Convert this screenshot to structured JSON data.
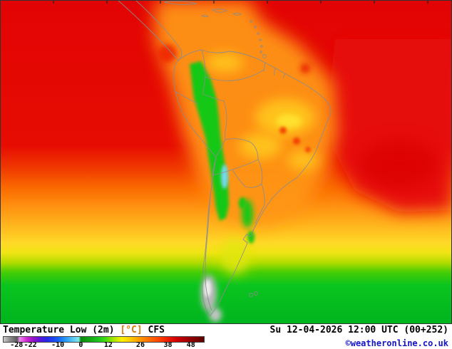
{
  "page": {
    "type": "weather-map",
    "region": "South America",
    "parameter": "Temperature Low (2m)"
  },
  "footer": {
    "title": "Temperature Low (2m)",
    "unit": "[°C]",
    "model": "CFS",
    "datetime": "Su 12-04-2026 12:00 UTC (00+252)",
    "copyright": "©weatheronline.co.uk"
  },
  "legend": {
    "min": -34,
    "max": 54,
    "ticks": [
      "-28",
      "-22",
      "-10",
      "0",
      "12",
      "26",
      "38",
      "48"
    ],
    "stops": [
      {
        "value": -34,
        "color": "#cccccc"
      },
      {
        "value": -31,
        "color": "#8a8a8a"
      },
      {
        "value": -28,
        "color": "#5a5a5a"
      },
      {
        "value": -27,
        "color": "#f08cf0"
      },
      {
        "value": -24,
        "color": "#d228d2"
      },
      {
        "value": -21,
        "color": "#9614c8"
      },
      {
        "value": -18,
        "color": "#5a14dc"
      },
      {
        "value": -15,
        "color": "#2828e6"
      },
      {
        "value": -12,
        "color": "#1e46f0"
      },
      {
        "value": -10,
        "color": "#1464f0"
      },
      {
        "value": -7,
        "color": "#2896f5"
      },
      {
        "value": -4,
        "color": "#50c3f0"
      },
      {
        "value": -1,
        "color": "#82e6f0"
      },
      {
        "value": 0,
        "color": "#0a8c0a"
      },
      {
        "value": 4,
        "color": "#14aa14"
      },
      {
        "value": 8,
        "color": "#1ec81e"
      },
      {
        "value": 11,
        "color": "#46dc0f"
      },
      {
        "value": 14,
        "color": "#a0e600"
      },
      {
        "value": 18,
        "color": "#fff000"
      },
      {
        "value": 22,
        "color": "#ffc800"
      },
      {
        "value": 26,
        "color": "#ff9600"
      },
      {
        "value": 30,
        "color": "#ff6e00"
      },
      {
        "value": 34,
        "color": "#ff4600"
      },
      {
        "value": 38,
        "color": "#f01e00"
      },
      {
        "value": 42,
        "color": "#d20000"
      },
      {
        "value": 46,
        "color": "#aa0000"
      },
      {
        "value": 50,
        "color": "#820000"
      },
      {
        "value": 54,
        "color": "#5a0000"
      }
    ]
  },
  "colors": {
    "unit_text": "#e07800",
    "copyright_text": "#1414c8",
    "hot_red": "#e20404",
    "warm_orange": "#ff9614",
    "mild_yellow": "#ffd928",
    "cool_green": "#14c814",
    "cold_cyan": "#78d7eb",
    "frigid_gray": "#b9b9b9"
  }
}
